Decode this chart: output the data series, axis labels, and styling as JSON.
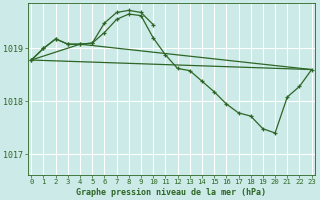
{
  "bg_color": "#cceae7",
  "grid_color": "#ffffff",
  "line_color": "#2d6626",
  "title": "Graphe pression niveau de la mer (hPa)",
  "title_color": "#2d6626",
  "yticks": [
    1017,
    1018,
    1019
  ],
  "ylim": [
    1016.6,
    1019.85
  ],
  "xlim": [
    -0.3,
    23.3
  ],
  "xticks": [
    0,
    1,
    2,
    3,
    4,
    5,
    6,
    7,
    8,
    9,
    10,
    11,
    12,
    13,
    14,
    15,
    16,
    17,
    18,
    19,
    20,
    21,
    22,
    23
  ],
  "series1_x": [
    0,
    1,
    2,
    3,
    4,
    5,
    6,
    7,
    8,
    9,
    10,
    11,
    12,
    13,
    14,
    15,
    16,
    17,
    18,
    19,
    20,
    21,
    22,
    23
  ],
  "series1_y": [
    1018.78,
    1019.0,
    1019.18,
    1019.08,
    1019.08,
    1019.1,
    1019.3,
    1019.55,
    1019.65,
    1019.62,
    1019.2,
    1018.88,
    1018.62,
    1018.58,
    1018.38,
    1018.18,
    1017.95,
    1017.78,
    1017.72,
    1017.48,
    1017.4,
    1018.08,
    1018.28,
    1018.6
  ],
  "series2_x": [
    0,
    1,
    2,
    3,
    4,
    5,
    6,
    7,
    8,
    9,
    10
  ],
  "series2_y": [
    1018.78,
    1019.0,
    1019.18,
    1019.08,
    1019.08,
    1019.1,
    1019.48,
    1019.68,
    1019.72,
    1019.68,
    1019.45
  ],
  "series3_x": [
    0,
    4,
    23
  ],
  "series3_y": [
    1018.78,
    1019.08,
    1018.6
  ],
  "series4_x": [
    0,
    23
  ],
  "series4_y": [
    1018.78,
    1018.6
  ]
}
